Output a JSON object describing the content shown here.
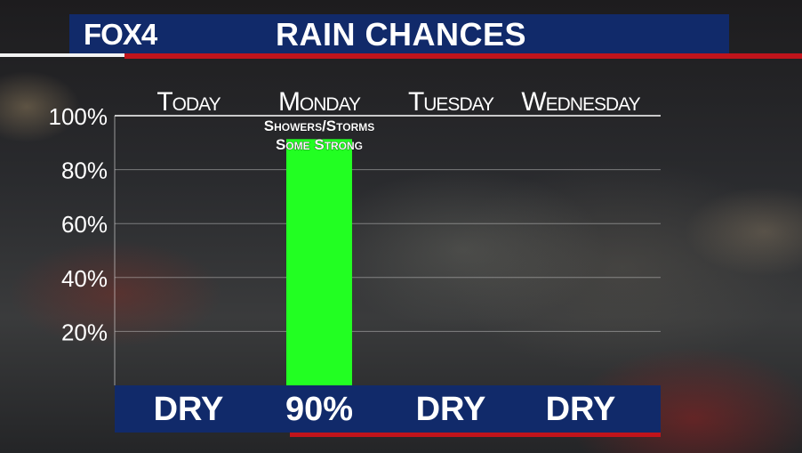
{
  "header": {
    "logo": "FOX4",
    "title": "RAIN CHANCES"
  },
  "colors": {
    "header_bg": "#112a6a",
    "accent_red": "#c0141b",
    "bar": "#22ff22"
  },
  "chart_data": {
    "type": "bar",
    "title": "RAIN CHANCES",
    "categories": [
      "Today",
      "Monday",
      "Tuesday",
      "Wednesday"
    ],
    "values": [
      0,
      90,
      0,
      0
    ],
    "value_labels": [
      "DRY",
      "90%",
      "DRY",
      "DRY"
    ],
    "annotations": [
      {
        "category": "Monday",
        "lines": [
          "Showers/Storms",
          "Some Strong"
        ]
      }
    ],
    "y_ticks": [
      "20%",
      "40%",
      "60%",
      "80%",
      "100%"
    ],
    "ylim": [
      0,
      100
    ],
    "grid": true
  }
}
